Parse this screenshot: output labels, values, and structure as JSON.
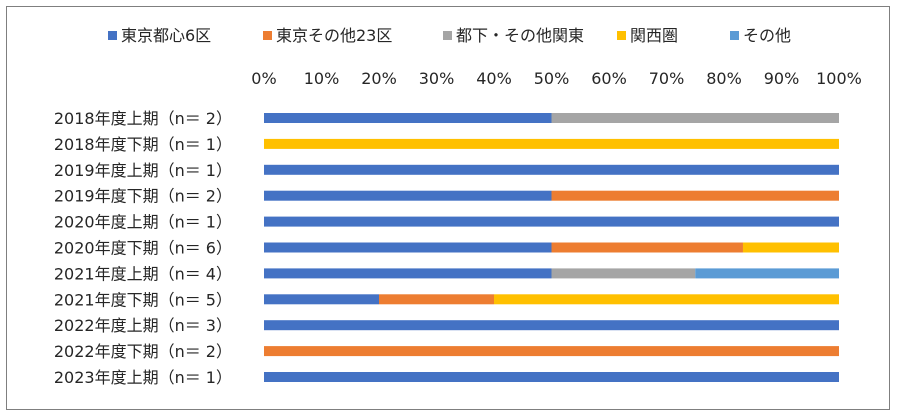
{
  "chart_data": {
    "type": "bar",
    "orientation": "horizontal",
    "stacked": "percent",
    "xlim": [
      0,
      100
    ],
    "x_ticks": [
      "0%",
      "10%",
      "20%",
      "30%",
      "40%",
      "50%",
      "60%",
      "70%",
      "80%",
      "90%",
      "100%"
    ],
    "axis_position": "top",
    "legend_position": "top",
    "grid": false,
    "categories": [
      "2018年度上期（n＝ 2）",
      "2018年度下期（n＝ 1）",
      "2019年度上期（n＝ 1）",
      "2019年度下期（n＝ 2）",
      "2020年度上期（n＝ 1）",
      "2020年度下期（n＝ 6）",
      "2021年度上期（n＝ 4）",
      "2021年度下期（n＝ 5）",
      "2022年度上期（n＝ 3）",
      "2022年度下期（n＝ 2）",
      "2023年度上期（n＝ 1）"
    ],
    "series": [
      {
        "name": "東京都心6区",
        "color": "#4472c4",
        "values": [
          50,
          0,
          100,
          50,
          100,
          50,
          50,
          20,
          100,
          0,
          100
        ]
      },
      {
        "name": "東京その他23区",
        "color": "#ed7d31",
        "values": [
          0,
          0,
          0,
          50,
          0,
          33.3,
          0,
          20,
          0,
          100,
          0
        ]
      },
      {
        "name": "都下・その他関東",
        "color": "#a5a5a5",
        "values": [
          50,
          0,
          0,
          0,
          0,
          0,
          25,
          0,
          0,
          0,
          0
        ]
      },
      {
        "name": "関西圏",
        "color": "#ffc000",
        "values": [
          0,
          100,
          0,
          0,
          0,
          16.7,
          0,
          60,
          0,
          0,
          0
        ]
      },
      {
        "name": "その他",
        "color": "#5b9bd5",
        "values": [
          0,
          0,
          0,
          0,
          0,
          0,
          25,
          0,
          0,
          0,
          0
        ]
      }
    ]
  }
}
